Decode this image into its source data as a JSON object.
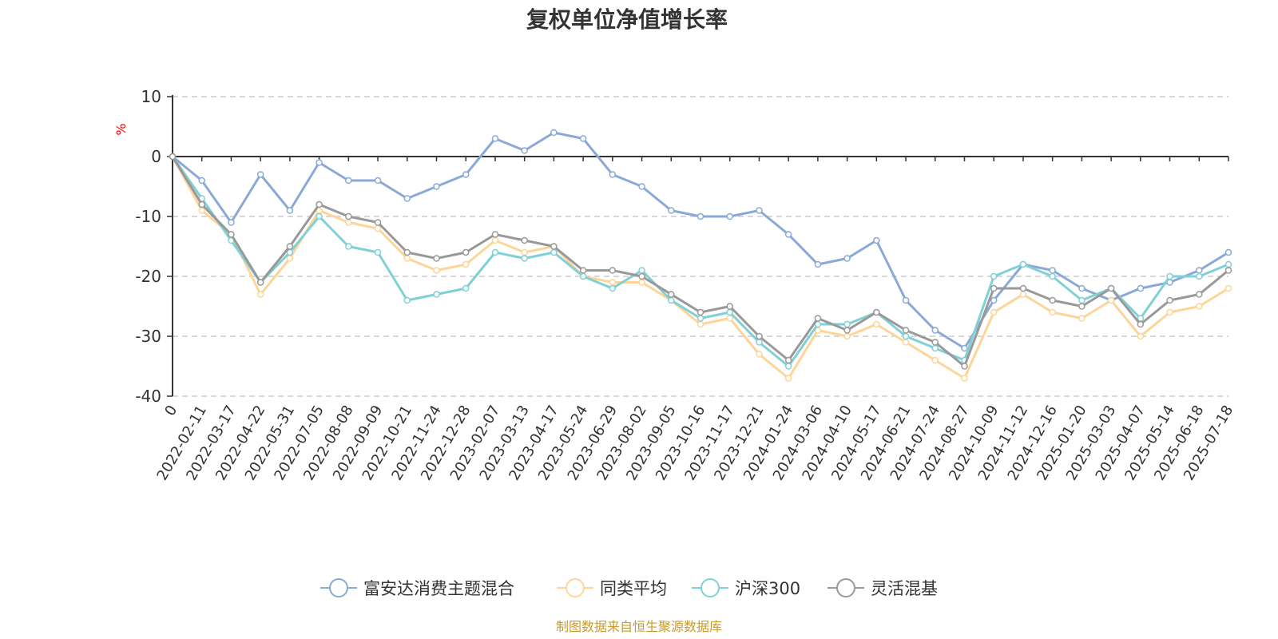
{
  "chart_data": {
    "type": "line",
    "title": "复权单位净值增长率",
    "ylabel": "%",
    "ylim": [
      -40,
      10
    ],
    "yticks": [
      10,
      0,
      -10,
      -20,
      -30,
      -40
    ],
    "grid": true,
    "legend_position": "bottom",
    "x_tick_labels": [
      "0",
      "2022-02-11",
      "2022-03-17",
      "2022-04-22",
      "2022-05-31",
      "2022-07-05",
      "2022-08-08",
      "2022-09-09",
      "2022-10-21",
      "2022-11-24",
      "2022-12-28",
      "2023-02-07",
      "2023-03-13",
      "2023-04-17",
      "2023-05-24",
      "2023-06-29",
      "2023-08-02",
      "2023-09-05",
      "2023-10-16",
      "2023-11-17",
      "2023-12-21",
      "2024-01-24",
      "2024-03-06",
      "2024-04-10",
      "2024-05-17",
      "2024-06-21",
      "2024-07-24",
      "2024-08-27",
      "2024-10-09",
      "2024-11-12",
      "2024-12-16",
      "2025-01-20",
      "2025-03-03",
      "2025-04-07",
      "2025-05-14",
      "2025-06-18",
      "2025-07-18"
    ],
    "series": [
      {
        "name": "富安达消费主题混合",
        "color": "#8aa9d6",
        "values": [
          0,
          -4,
          -11,
          -3,
          -9,
          -1,
          -4,
          -4,
          -7,
          -5,
          -3,
          3,
          1,
          4,
          3,
          -3,
          -5,
          -9,
          -10,
          -10,
          -9,
          -13,
          -18,
          -17,
          -14,
          -24,
          -29,
          -32,
          -24,
          -18,
          -19,
          -22,
          -24,
          -22,
          -21,
          -19,
          -16
        ]
      },
      {
        "name": "同类平均",
        "color": "#fdd598",
        "values": [
          0,
          -9,
          -13,
          -23,
          -17,
          -9,
          -11,
          -12,
          -17,
          -19,
          -18,
          -14,
          -16,
          -15,
          -20,
          -21,
          -21,
          -24,
          -28,
          -27,
          -33,
          -37,
          -29,
          -30,
          -28,
          -31,
          -34,
          -37,
          -26,
          -23,
          -26,
          -27,
          -24,
          -30,
          -26,
          -25,
          -22
        ]
      },
      {
        "name": "沪深300",
        "color": "#7fd1d6",
        "values": [
          0,
          -7,
          -14,
          -21,
          -16,
          -10,
          -15,
          -16,
          -24,
          -23,
          -22,
          -16,
          -17,
          -16,
          -20,
          -22,
          -19,
          -24,
          -27,
          -26,
          -31,
          -35,
          -28,
          -28,
          -26,
          -30,
          -32,
          -34,
          -20,
          -18,
          -20,
          -24,
          -22,
          -27,
          -20,
          -20,
          -18
        ]
      },
      {
        "name": "灵活混基",
        "color": "#999999",
        "values": [
          0,
          -8,
          -13,
          -21,
          -15,
          -8,
          -10,
          -11,
          -16,
          -17,
          -16,
          -13,
          -14,
          -15,
          -19,
          -19,
          -20,
          -23,
          -26,
          -25,
          -30,
          -34,
          -27,
          -29,
          -26,
          -29,
          -31,
          -35,
          -22,
          -22,
          -24,
          -25,
          -22,
          -28,
          -24,
          -23,
          -19
        ]
      }
    ]
  },
  "source_note": "制图数据来自恒生聚源数据库"
}
